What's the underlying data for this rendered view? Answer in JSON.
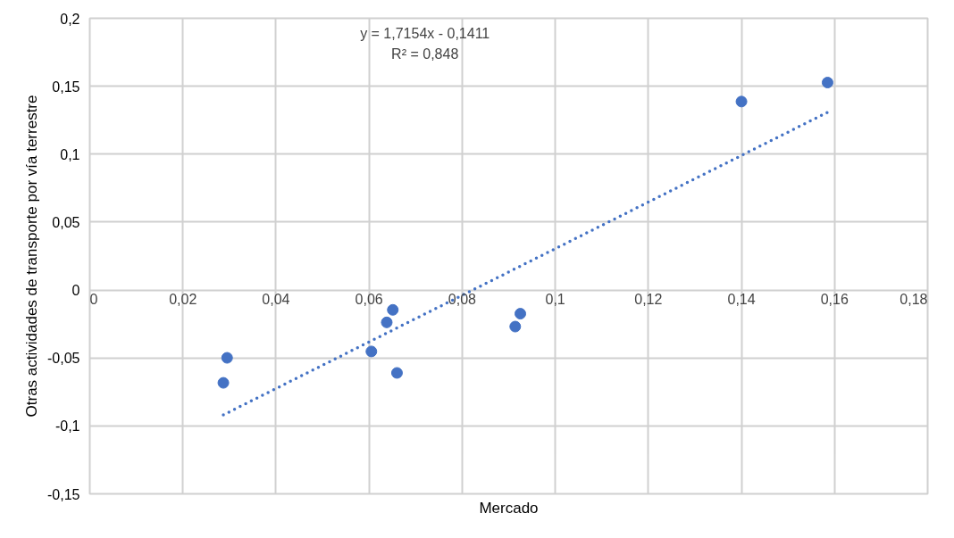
{
  "chart_data": {
    "type": "scatter",
    "xlabel": "Mercado",
    "ylabel": "Otras actividades de transporte por vía terrestre",
    "annotations": [
      "y = 1,7154x - 0,1411",
      "R² = 0,848"
    ],
    "series": [
      {
        "type": "scatter",
        "marker": "circle",
        "color": "#4472c4",
        "x": [
          0.0295,
          0.0287,
          0.0651,
          0.0638,
          0.0605,
          0.066,
          0.0925,
          0.0914,
          0.14,
          0.1585
        ],
        "values": [
          -0.0499,
          -0.0683,
          -0.0146,
          -0.0238,
          -0.0452,
          -0.061,
          -0.0174,
          -0.0269,
          0.1387,
          0.1527
        ]
      },
      {
        "type": "line",
        "color": "#4472c4",
        "line_style": "dotted",
        "x": [
          0.0287,
          0.1585
        ],
        "values": [
          -0.0919,
          0.1308
        ]
      }
    ],
    "grid": true,
    "xlim": [
      0,
      0.18
    ],
    "ylim": [
      -0.15,
      0.2
    ],
    "xticks": [
      0,
      {
        "value": 0.02,
        "label": "0,02"
      },
      {
        "value": 0.04,
        "label": "0,04"
      },
      {
        "value": 0.06,
        "label": "0,06"
      },
      {
        "value": 0.08,
        "label": "0,08"
      },
      {
        "value": 0.1,
        "label": "0,1"
      },
      {
        "value": 0.12,
        "label": "0,12"
      },
      {
        "value": 0.14,
        "label": "0,14"
      },
      {
        "value": 0.16,
        "label": "0,16"
      },
      {
        "value": 0.18,
        "label": "0,18"
      }
    ],
    "yticks": [
      {
        "value": -0.15,
        "label": "-0,15"
      },
      {
        "value": -0.1,
        "label": "-0,1"
      },
      {
        "value": -0.05,
        "label": "-0,05"
      },
      0,
      {
        "value": 0.05,
        "label": "0,05"
      },
      {
        "value": 0.1,
        "label": "0,1"
      },
      {
        "value": 0.15,
        "label": "0,15"
      },
      {
        "value": 0.2,
        "label": "0,2"
      }
    ]
  }
}
